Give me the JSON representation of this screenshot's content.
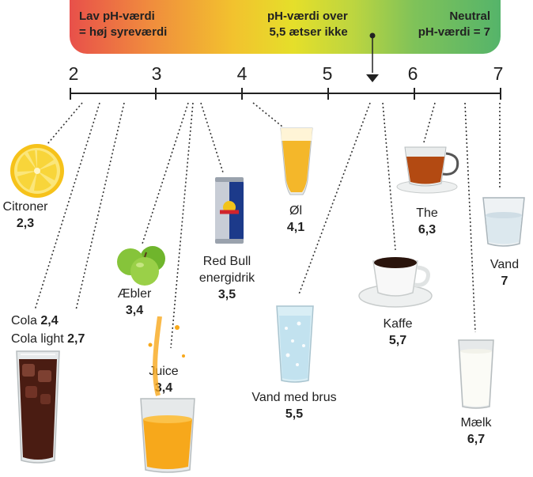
{
  "banner": {
    "left_line1": "Lav pH-værdi",
    "left_line2": "= høj syreværdi",
    "mid_line1": "pH-værdi over",
    "mid_line2": "5,5 ætser ikke",
    "right_line1": "Neutral",
    "right_line2": "pH-værdi = 7"
  },
  "axis": {
    "ticks": [
      "2",
      "3",
      "4",
      "5",
      "6",
      "7"
    ],
    "threshold": 5.5
  },
  "items": {
    "citroner": {
      "name": "Citroner",
      "value": "2,3",
      "icon": "lemon-icon"
    },
    "cola": {
      "name": "Cola",
      "value": "2,4",
      "icon": "cola-glass-icon"
    },
    "cola_light": {
      "name": "Cola light",
      "value": "2,7"
    },
    "aebler": {
      "name": "Æbler",
      "value": "3,4",
      "icon": "apples-icon"
    },
    "juice": {
      "name": "Juice",
      "value": "3,4",
      "icon": "juice-glass-icon"
    },
    "redbull": {
      "name_line1": "Red Bull",
      "name_line2": "energidrik",
      "value": "3,5",
      "icon": "energy-can-icon"
    },
    "ol": {
      "name": "Øl",
      "value": "4,1",
      "icon": "beer-glass-icon"
    },
    "vand_brus": {
      "name": "Vand med brus",
      "value": "5,5",
      "icon": "sparkling-water-icon"
    },
    "kaffe": {
      "name": "Kaffe",
      "value": "5,7",
      "icon": "coffee-cup-icon"
    },
    "the": {
      "name": "The",
      "value": "6,3",
      "icon": "tea-cup-icon"
    },
    "maelk": {
      "name": "Mælk",
      "value": "6,7",
      "icon": "milk-glass-icon"
    },
    "vand": {
      "name": "Vand",
      "value": "7",
      "icon": "water-glass-icon"
    }
  },
  "colors": {
    "acid": "#e8504a",
    "mid": "#e5df2a",
    "neutral": "#55b46a"
  }
}
